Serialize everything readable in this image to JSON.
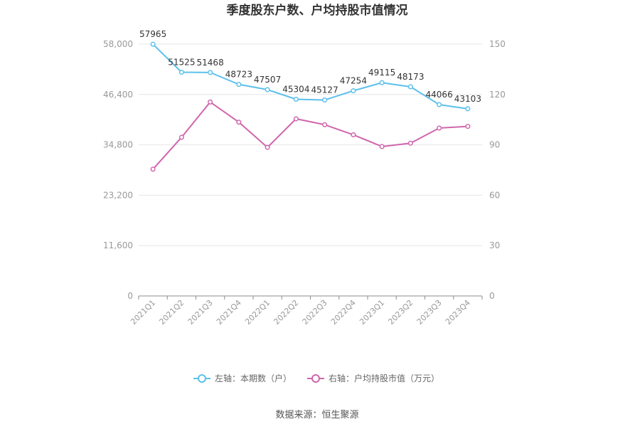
{
  "chart_data": {
    "type": "line",
    "title": "季度股东户数、户均持股市值情况",
    "categories": [
      "2021Q1",
      "2021Q2",
      "2021Q3",
      "2021Q4",
      "2022Q1",
      "2022Q2",
      "2022Q3",
      "2022Q4",
      "2023Q1",
      "2023Q2",
      "2023Q3",
      "2023Q4"
    ],
    "left_axis": {
      "min": 0,
      "max": 58000,
      "ticks": [
        "0",
        "11,600",
        "23,200",
        "34,800",
        "46,400",
        "58,000"
      ]
    },
    "right_axis": {
      "min": 0,
      "max": 150,
      "ticks": [
        "0",
        "30",
        "60",
        "90",
        "120",
        "150"
      ]
    },
    "grid": true,
    "legend_position": "bottom",
    "series": [
      {
        "name": "左轴：本期数（户）",
        "axis": "left",
        "color": "#5bc0eb",
        "values": [
          57965,
          51525,
          51468,
          48723,
          47507,
          45304,
          45127,
          47254,
          49115,
          48173,
          44066,
          43103
        ],
        "labels": [
          "57965",
          "51525",
          "51468",
          "48723",
          "47507",
          "45304",
          "45127",
          "47254",
          "49115",
          "48173",
          "44066",
          "43103"
        ]
      },
      {
        "name": "右轴：户均持股市值（万元）",
        "axis": "right",
        "color": "#d066ad",
        "values": [
          75.5,
          94.5,
          115.5,
          103.5,
          88.5,
          105.5,
          102.0,
          96.0,
          89.0,
          91.0,
          100.0,
          101.0
        ]
      }
    ]
  },
  "source": "数据来源：恒生聚源"
}
